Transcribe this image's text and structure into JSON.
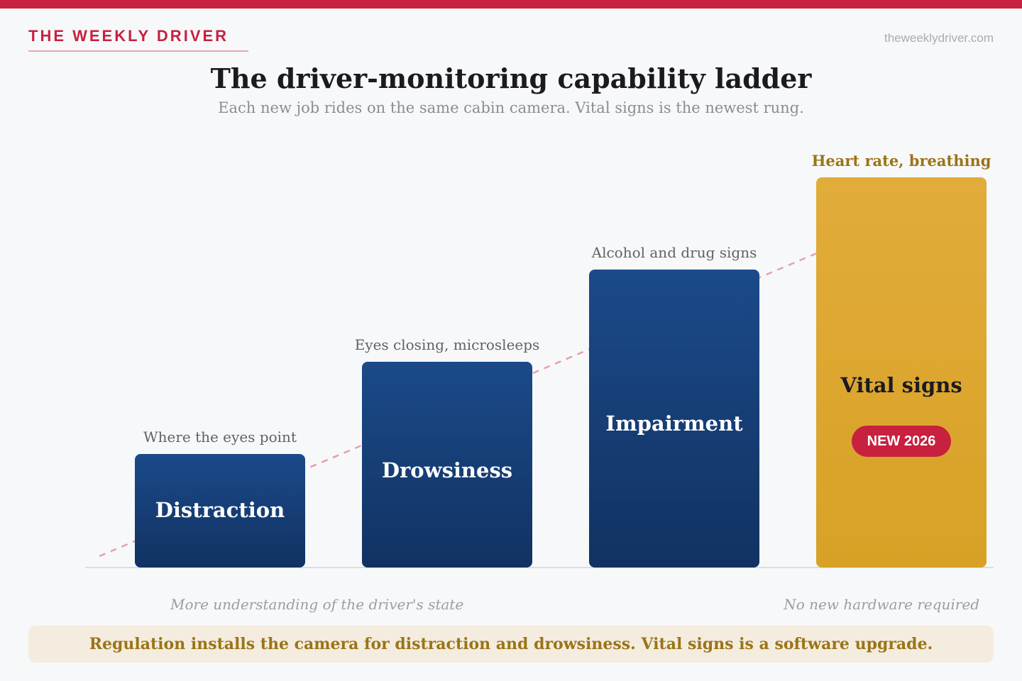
{
  "header": {
    "brand": "THE WEEKLY DRIVER",
    "site": "theweeklydriver.com"
  },
  "title": "The driver-monitoring capability ladder",
  "subtitle": "Each new job rides on the same cabin camera. Vital signs is the newest rung.",
  "ladder": {
    "steps": [
      {
        "label": "Distraction",
        "caption": "Where the eyes point",
        "level": 1,
        "highlight": false,
        "badge": ""
      },
      {
        "label": "Drowsiness",
        "caption": "Eyes closing, microsleeps",
        "level": 2,
        "highlight": false,
        "badge": ""
      },
      {
        "label": "Impairment",
        "caption": "Alcohol and drug signs",
        "level": 3,
        "highlight": false,
        "badge": ""
      },
      {
        "label": "Vital signs",
        "caption": "Heart rate, breathing",
        "level": 4,
        "highlight": true,
        "badge": "NEW 2026"
      }
    ],
    "max_level": 4
  },
  "axis_notes": {
    "left": "More understanding of the driver's state",
    "right": "No new hardware required"
  },
  "callout": "Regulation installs the camera for distraction and drowsiness. Vital signs is a software upgrade.",
  "colors": {
    "accent": "#c8203f",
    "rung": "#17407a",
    "highlight": "#dca62f",
    "callout_text": "#9b7416"
  }
}
